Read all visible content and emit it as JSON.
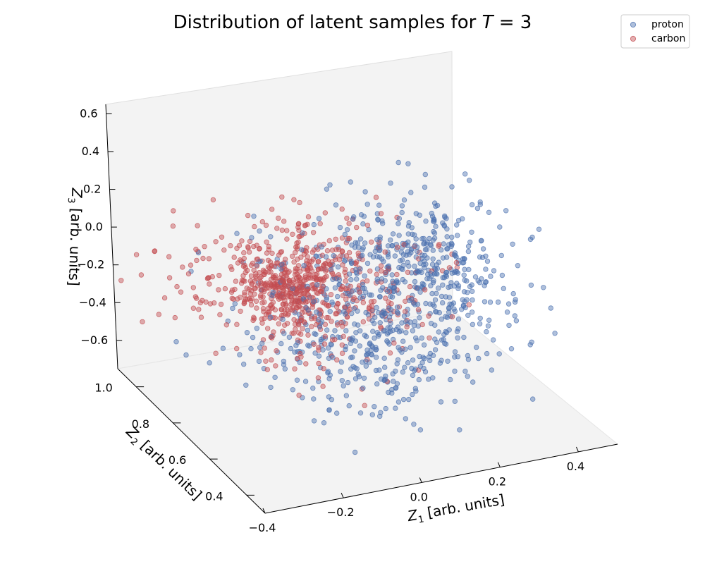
{
  "chart_data": {
    "type": "scatter",
    "title_prefix": "Distribution of latent samples for",
    "title_var": "T",
    "title_rest": " = 3",
    "xlabel": {
      "main": "Z",
      "sub": "1",
      "rest": " [arb. units]"
    },
    "ylabel": {
      "main": "Z",
      "sub": "2",
      "rest": " [arb. units]"
    },
    "zlabel": {
      "main": "Z",
      "sub": "3",
      "rest": " [arb. units]"
    },
    "x_ticks": [
      "−0.4",
      "−0.2",
      "0.0",
      "0.2",
      "0.4"
    ],
    "y_ticks": [
      "0.4",
      "0.6",
      "0.8",
      "1.0"
    ],
    "z_ticks": [
      "−0.6",
      "−0.4",
      "−0.2",
      "0.0",
      "0.2",
      "0.4",
      "0.6"
    ],
    "xlim": [
      -0.4,
      0.5
    ],
    "ylim": [
      0.3,
      1.1
    ],
    "zlim": [
      -0.75,
      0.65
    ],
    "legend_position": "top-right",
    "series": [
      {
        "name": "proton",
        "color": "#4C72B0",
        "n": 820
      },
      {
        "name": "carbon",
        "color": "#C44E52",
        "n": 760
      }
    ]
  }
}
